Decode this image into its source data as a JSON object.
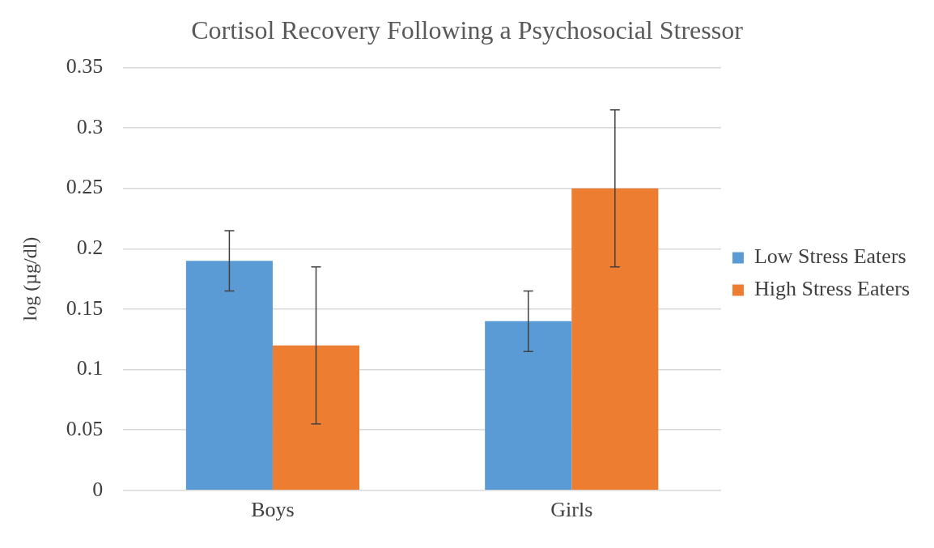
{
  "chart_data": {
    "type": "bar",
    "title": "Cortisol Recovery Following a Psychosocial Stressor",
    "ylabel": "log (µg/dl)",
    "categories": [
      "Boys",
      "Girls"
    ],
    "series": [
      {
        "name": "Low Stress Eaters",
        "color": "#5b9bd5",
        "values": [
          0.19,
          0.14
        ],
        "errors": [
          0.025,
          0.025
        ]
      },
      {
        "name": "High Stress Eaters",
        "color": "#ed7d31",
        "values": [
          0.12,
          0.25
        ],
        "errors": [
          0.065,
          0.065
        ]
      }
    ],
    "ylim": [
      0,
      0.35
    ],
    "yticks": [
      0,
      0.05,
      0.1,
      0.15,
      0.2,
      0.25,
      0.3,
      0.35
    ],
    "grid": "y",
    "legend": "right"
  }
}
